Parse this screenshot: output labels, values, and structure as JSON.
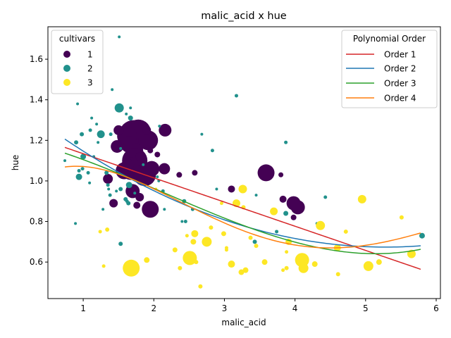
{
  "chart_data": {
    "type": "scatter",
    "title": "malic_acid x hue",
    "xlabel": "malic_acid",
    "ylabel": "hue",
    "xlim": [
      0.5,
      6.06
    ],
    "ylim": [
      0.42,
      1.76
    ],
    "xticks": [
      1,
      2,
      3,
      4,
      5,
      6
    ],
    "xtick_labels": [
      "1",
      "2",
      "3",
      "4",
      "5",
      "6"
    ],
    "yticks": [
      0.6,
      0.8,
      1.0,
      1.2,
      1.4,
      1.6
    ],
    "ytick_labels": [
      "0.6",
      "0.8",
      "1.0",
      "1.2",
      "1.4",
      "1.6"
    ],
    "grid": false,
    "legend_cultivars": {
      "title": "cultivars",
      "placement": "top-left",
      "entries": [
        {
          "label": "1",
          "color": "#440154"
        },
        {
          "label": "2",
          "color": "#21918c"
        },
        {
          "label": "3",
          "color": "#fde725"
        }
      ]
    },
    "legend_order": {
      "title": "Polynomial Order",
      "placement": "top-right",
      "entries": [
        {
          "label": "Order 1",
          "color": "#d62728"
        },
        {
          "label": "Order 2",
          "color": "#1f77b4"
        },
        {
          "label": "Order 3",
          "color": "#2ca02c"
        },
        {
          "label": "Order 4",
          "color": "#ff7f0e"
        }
      ]
    },
    "series": [
      {
        "name": "1",
        "color": "#440154",
        "points": [
          {
            "x": 1.71,
            "y": 1.23,
            "s": 20
          },
          {
            "x": 1.78,
            "y": 1.24,
            "s": 18
          },
          {
            "x": 1.62,
            "y": 1.22,
            "s": 14
          },
          {
            "x": 1.92,
            "y": 1.2,
            "s": 14
          },
          {
            "x": 1.65,
            "y": 1.18,
            "s": 12
          },
          {
            "x": 1.75,
            "y": 1.15,
            "s": 10
          },
          {
            "x": 1.48,
            "y": 1.17,
            "s": 9
          },
          {
            "x": 1.5,
            "y": 1.25,
            "s": 7
          },
          {
            "x": 1.73,
            "y": 1.1,
            "s": 18
          },
          {
            "x": 1.68,
            "y": 1.06,
            "s": 16
          },
          {
            "x": 1.87,
            "y": 1.03,
            "s": 16
          },
          {
            "x": 1.58,
            "y": 1.05,
            "s": 12
          },
          {
            "x": 1.97,
            "y": 1.06,
            "s": 11
          },
          {
            "x": 2.15,
            "y": 1.06,
            "s": 8
          },
          {
            "x": 2.16,
            "y": 1.25,
            "s": 9
          },
          {
            "x": 1.9,
            "y": 1.25,
            "s": 6
          },
          {
            "x": 1.8,
            "y": 1.12,
            "s": 6
          },
          {
            "x": 1.95,
            "y": 1.15,
            "s": 4
          },
          {
            "x": 2.05,
            "y": 1.13,
            "s": 4
          },
          {
            "x": 1.7,
            "y": 0.95,
            "s": 10
          },
          {
            "x": 1.8,
            "y": 0.92,
            "s": 6
          },
          {
            "x": 1.76,
            "y": 0.88,
            "s": 5
          },
          {
            "x": 1.95,
            "y": 0.86,
            "s": 12
          },
          {
            "x": 1.35,
            "y": 1.01,
            "s": 7
          },
          {
            "x": 1.43,
            "y": 0.89,
            "s": 6
          },
          {
            "x": 1.64,
            "y": 1.08,
            "s": 8
          },
          {
            "x": 2.58,
            "y": 1.04,
            "s": 4
          },
          {
            "x": 2.36,
            "y": 1.03,
            "s": 4
          },
          {
            "x": 3.1,
            "y": 0.96,
            "s": 5
          },
          {
            "x": 3.59,
            "y": 1.04,
            "s": 12
          },
          {
            "x": 3.8,
            "y": 1.03,
            "s": 3.5
          },
          {
            "x": 3.83,
            "y": 0.91,
            "s": 5
          },
          {
            "x": 3.98,
            "y": 0.89,
            "s": 10
          },
          {
            "x": 4.04,
            "y": 0.87,
            "s": 10
          },
          {
            "x": 3.98,
            "y": 0.82,
            "s": 4
          }
        ]
      },
      {
        "name": "2",
        "color": "#21918c",
        "points": [
          {
            "x": 1.51,
            "y": 1.71,
            "s": 2
          },
          {
            "x": 1.41,
            "y": 1.45,
            "s": 2
          },
          {
            "x": 1.51,
            "y": 1.36,
            "s": 6.5
          },
          {
            "x": 0.92,
            "y": 1.38,
            "s": 2
          },
          {
            "x": 3.17,
            "y": 1.42,
            "s": 2.5
          },
          {
            "x": 1.61,
            "y": 1.33,
            "s": 2
          },
          {
            "x": 1.67,
            "y": 1.36,
            "s": 2
          },
          {
            "x": 1.67,
            "y": 1.31,
            "s": 3.5
          },
          {
            "x": 1.12,
            "y": 1.31,
            "s": 2
          },
          {
            "x": 1.19,
            "y": 1.28,
            "s": 2
          },
          {
            "x": 1.1,
            "y": 1.25,
            "s": 2.5
          },
          {
            "x": 0.98,
            "y": 1.23,
            "s": 3
          },
          {
            "x": 1.25,
            "y": 1.23,
            "s": 5.5
          },
          {
            "x": 1.39,
            "y": 1.23,
            "s": 2.5
          },
          {
            "x": 2.68,
            "y": 1.23,
            "s": 2
          },
          {
            "x": 2.08,
            "y": 1.27,
            "s": 2
          },
          {
            "x": 0.9,
            "y": 1.19,
            "s": 3
          },
          {
            "x": 1.21,
            "y": 1.19,
            "s": 2
          },
          {
            "x": 3.87,
            "y": 1.19,
            "s": 2.5
          },
          {
            "x": 2.83,
            "y": 1.15,
            "s": 2.5
          },
          {
            "x": 1.53,
            "y": 1.16,
            "s": 2
          },
          {
            "x": 1.0,
            "y": 1.12,
            "s": 4
          },
          {
            "x": 1.15,
            "y": 1.12,
            "s": 2
          },
          {
            "x": 0.74,
            "y": 1.1,
            "s": 2
          },
          {
            "x": 0.99,
            "y": 1.06,
            "s": 2.5
          },
          {
            "x": 0.94,
            "y": 1.05,
            "s": 2.5
          },
          {
            "x": 1.07,
            "y": 1.04,
            "s": 2.5
          },
          {
            "x": 1.33,
            "y": 1.04,
            "s": 3
          },
          {
            "x": 0.94,
            "y": 1.02,
            "s": 4.5
          },
          {
            "x": 1.09,
            "y": 0.99,
            "s": 2
          },
          {
            "x": 1.35,
            "y": 0.98,
            "s": 2.5
          },
          {
            "x": 1.36,
            "y": 0.96,
            "s": 2
          },
          {
            "x": 1.53,
            "y": 0.96,
            "s": 3
          },
          {
            "x": 1.65,
            "y": 0.98,
            "s": 4.5
          },
          {
            "x": 1.47,
            "y": 0.95,
            "s": 2
          },
          {
            "x": 2.13,
            "y": 0.95,
            "s": 2.5
          },
          {
            "x": 2.89,
            "y": 0.96,
            "s": 2
          },
          {
            "x": 3.45,
            "y": 0.93,
            "s": 2
          },
          {
            "x": 1.38,
            "y": 0.93,
            "s": 2.5
          },
          {
            "x": 1.6,
            "y": 0.91,
            "s": 3
          },
          {
            "x": 1.64,
            "y": 0.89,
            "s": 3
          },
          {
            "x": 1.62,
            "y": 0.9,
            "s": 2.5
          },
          {
            "x": 2.43,
            "y": 0.9,
            "s": 3
          },
          {
            "x": 4.43,
            "y": 0.92,
            "s": 2.5
          },
          {
            "x": 1.28,
            "y": 0.86,
            "s": 2
          },
          {
            "x": 2.55,
            "y": 0.86,
            "s": 2.5
          },
          {
            "x": 2.15,
            "y": 0.86,
            "s": 2
          },
          {
            "x": 3.87,
            "y": 0.84,
            "s": 3.5
          },
          {
            "x": 2.4,
            "y": 0.8,
            "s": 2
          },
          {
            "x": 2.45,
            "y": 0.8,
            "s": 2.5
          },
          {
            "x": 0.89,
            "y": 0.79,
            "s": 2
          },
          {
            "x": 4.31,
            "y": 0.79,
            "s": 2
          },
          {
            "x": 3.74,
            "y": 0.75,
            "s": 2.5
          },
          {
            "x": 3.43,
            "y": 0.7,
            "s": 3
          },
          {
            "x": 1.53,
            "y": 0.69,
            "s": 3
          },
          {
            "x": 5.8,
            "y": 0.73,
            "s": 4
          },
          {
            "x": 1.85,
            "y": 1.08,
            "s": 2
          },
          {
            "x": 1.73,
            "y": 0.94,
            "s": 2
          },
          {
            "x": 2.05,
            "y": 1.02,
            "s": 2
          },
          {
            "x": 2.07,
            "y": 1.0,
            "s": 2
          }
        ]
      },
      {
        "name": "3",
        "color": "#fde725",
        "points": [
          {
            "x": 1.68,
            "y": 0.57,
            "s": 12
          },
          {
            "x": 2.51,
            "y": 0.62,
            "s": 10
          },
          {
            "x": 4.1,
            "y": 0.61,
            "s": 10
          },
          {
            "x": 2.75,
            "y": 0.7,
            "s": 7
          },
          {
            "x": 3.26,
            "y": 0.96,
            "s": 6
          },
          {
            "x": 4.95,
            "y": 0.91,
            "s": 6
          },
          {
            "x": 3.17,
            "y": 0.89,
            "s": 5.5
          },
          {
            "x": 3.7,
            "y": 0.85,
            "s": 5.5
          },
          {
            "x": 4.36,
            "y": 0.78,
            "s": 6.5
          },
          {
            "x": 4.12,
            "y": 0.57,
            "s": 7
          },
          {
            "x": 5.04,
            "y": 0.58,
            "s": 7
          },
          {
            "x": 5.65,
            "y": 0.64,
            "s": 6
          },
          {
            "x": 4.6,
            "y": 0.67,
            "s": 5
          },
          {
            "x": 3.1,
            "y": 0.59,
            "s": 5
          },
          {
            "x": 3.24,
            "y": 0.55,
            "s": 4
          },
          {
            "x": 3.3,
            "y": 0.56,
            "s": 4
          },
          {
            "x": 4.28,
            "y": 0.59,
            "s": 4
          },
          {
            "x": 3.91,
            "y": 0.7,
            "s": 4.5
          },
          {
            "x": 2.58,
            "y": 0.74,
            "s": 5
          },
          {
            "x": 2.56,
            "y": 0.7,
            "s": 4
          },
          {
            "x": 3.57,
            "y": 0.6,
            "s": 4
          },
          {
            "x": 5.19,
            "y": 0.6,
            "s": 4
          },
          {
            "x": 1.9,
            "y": 0.61,
            "s": 4
          },
          {
            "x": 2.3,
            "y": 0.66,
            "s": 3.5
          },
          {
            "x": 2.99,
            "y": 0.74,
            "s": 3.5
          },
          {
            "x": 3.27,
            "y": 0.87,
            "s": 3
          },
          {
            "x": 2.96,
            "y": 0.89,
            "s": 2.5
          },
          {
            "x": 2.81,
            "y": 0.77,
            "s": 3
          },
          {
            "x": 3.37,
            "y": 0.72,
            "s": 3
          },
          {
            "x": 3.45,
            "y": 0.68,
            "s": 3
          },
          {
            "x": 3.03,
            "y": 0.67,
            "s": 2.5
          },
          {
            "x": 3.03,
            "y": 0.66,
            "s": 2.5
          },
          {
            "x": 2.37,
            "y": 0.57,
            "s": 3
          },
          {
            "x": 2.66,
            "y": 0.48,
            "s": 3
          },
          {
            "x": 2.6,
            "y": 0.6,
            "s": 3
          },
          {
            "x": 3.88,
            "y": 0.57,
            "s": 3
          },
          {
            "x": 3.83,
            "y": 0.56,
            "s": 2.5
          },
          {
            "x": 3.88,
            "y": 0.65,
            "s": 2.5
          },
          {
            "x": 4.61,
            "y": 0.54,
            "s": 3
          },
          {
            "x": 5.51,
            "y": 0.82,
            "s": 3
          },
          {
            "x": 4.72,
            "y": 0.75,
            "s": 3
          },
          {
            "x": 1.34,
            "y": 0.76,
            "s": 3
          },
          {
            "x": 1.24,
            "y": 0.75,
            "s": 2.5
          },
          {
            "x": 1.29,
            "y": 0.58,
            "s": 2.5
          },
          {
            "x": 2.47,
            "y": 0.73,
            "s": 2.5
          },
          {
            "x": 2.03,
            "y": 0.96,
            "s": 2
          }
        ]
      }
    ],
    "fit_lines": [
      {
        "name": "Order 1",
        "color": "#d62728",
        "coeffs": [
          1.2534,
          -0.1192
        ]
      },
      {
        "name": "Order 2",
        "color": "#1f77b4",
        "coeffs": [
          1.3938,
          -0.2727,
          0.02582
        ]
      },
      {
        "name": "Order 3",
        "color": "#2ca02c",
        "coeffs": [
          1.2082,
          -0.07288,
          -0.03597,
          0.005581
        ]
      },
      {
        "name": "Order 4",
        "color": "#ff7f0e",
        "coeffs": [
          0.9357,
          0.3381,
          -0.2486,
          0.04876,
          -0.002918
        ]
      }
    ]
  }
}
